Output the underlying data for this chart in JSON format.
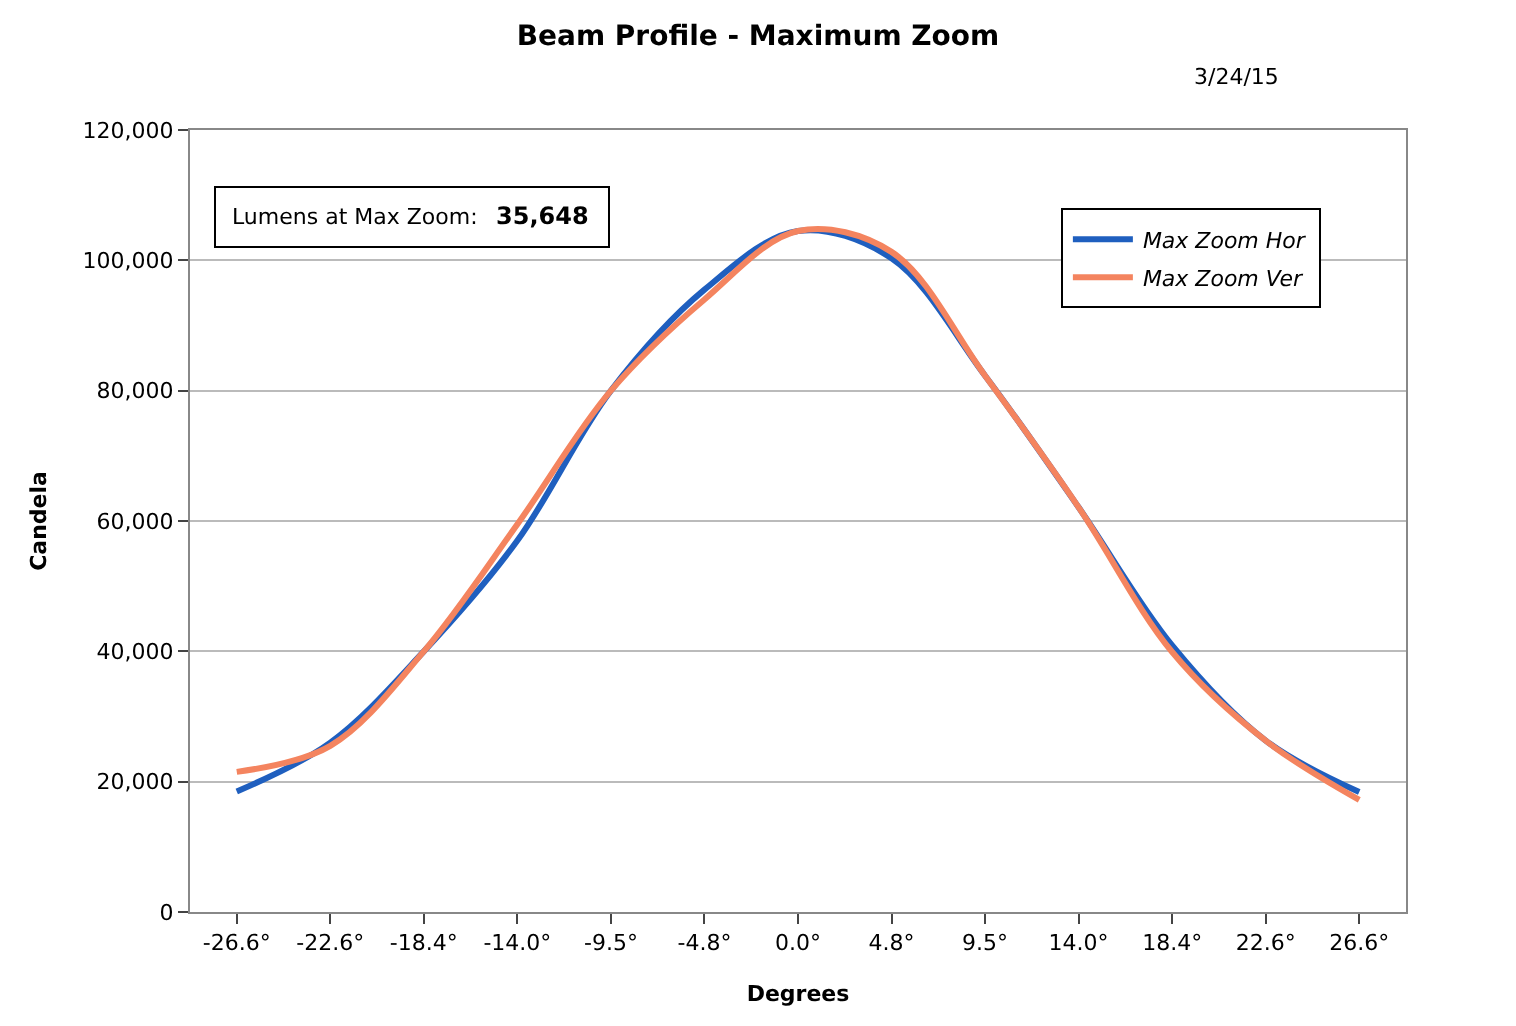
{
  "chart_data": {
    "type": "line",
    "title": "Beam Profile - Maximum Zoom",
    "xlabel": "Degrees",
    "ylabel": "Candela",
    "annotations": [
      "3/24/15",
      "Lumens at Max Zoom:",
      "35,648"
    ],
    "categories": [
      "-26.6°",
      "-22.6°",
      "-18.4°",
      "-14.0°",
      "-9.5°",
      "-4.8°",
      "0.0°",
      "4.8°",
      "9.5°",
      "14.0°",
      "18.4°",
      "22.6°",
      "26.6°"
    ],
    "series": [
      {
        "name": "Max Zoom Hor",
        "color": "#1f5fbf",
        "values": [
          18500,
          26000,
          40000,
          57000,
          80000,
          95500,
          104500,
          100300,
          82300,
          62100,
          40900,
          26300,
          18400
        ]
      },
      {
        "name": "Max Zoom Ver",
        "color": "#f4845f",
        "values": [
          21500,
          25500,
          40000,
          59500,
          80000,
          94000,
          104500,
          101300,
          82300,
          62100,
          39900,
          26300,
          17200
        ]
      }
    ],
    "ylim": [
      0,
      120000
    ],
    "yticks": [
      {
        "value": 0,
        "label": "0"
      },
      {
        "value": 20000,
        "label": "20,000"
      },
      {
        "value": 40000,
        "label": "40,000"
      },
      {
        "value": 60000,
        "label": "60,000"
      },
      {
        "value": 80000,
        "label": "80,000"
      },
      {
        "value": 100000,
        "label": "100,000"
      },
      {
        "value": 120000,
        "label": "120,000"
      }
    ],
    "grid": "y",
    "legend": "top right",
    "marker": "none",
    "line_style": "solid"
  }
}
